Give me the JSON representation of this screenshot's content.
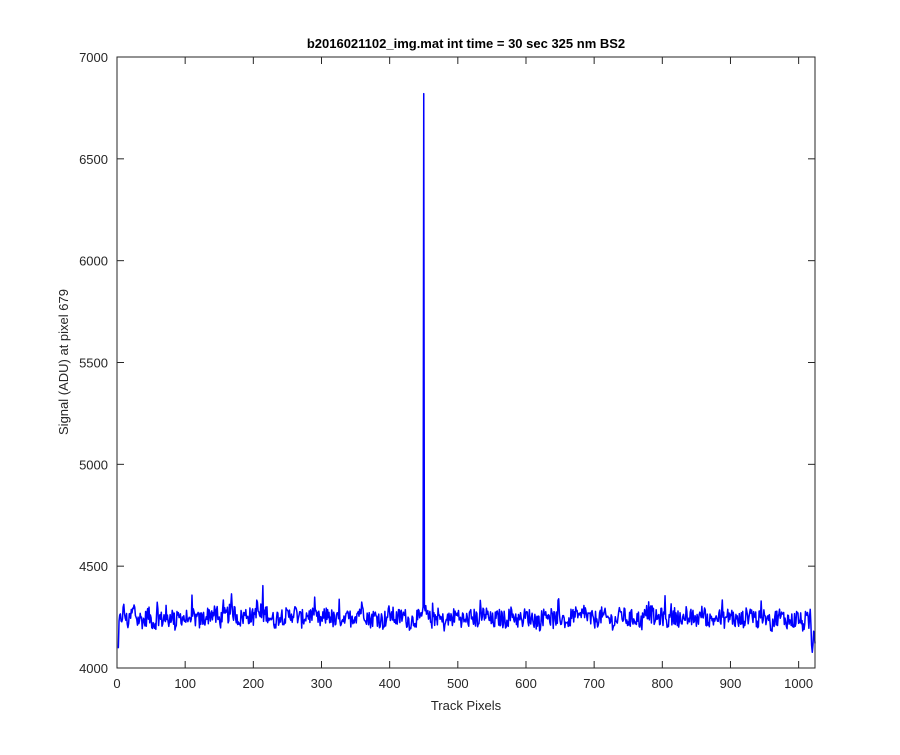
{
  "chart_data": {
    "type": "line",
    "title": "b2016021102_img.mat int time = 30 sec  325 nm BS2",
    "xlabel": "Track Pixels",
    "ylabel": "Signal (ADU) at pixel 679",
    "xlim": [
      0,
      1024
    ],
    "ylim": [
      4000,
      7000
    ],
    "xticks": [
      0,
      100,
      200,
      300,
      400,
      500,
      600,
      700,
      800,
      900,
      1000
    ],
    "yticks": [
      4000,
      4500,
      5000,
      5500,
      6000,
      6500,
      7000
    ],
    "grid": false,
    "series": [
      {
        "color": "#0000ff",
        "description_points": {
          "x": [
            1,
            5,
            10,
            15,
            20,
            25,
            30,
            35,
            40,
            45,
            50,
            55,
            60,
            65,
            70,
            75,
            80,
            85,
            90,
            95,
            100,
            110,
            120,
            130,
            140,
            150,
            160,
            170,
            180,
            190,
            200,
            205,
            210,
            220,
            230,
            240,
            250,
            260,
            270,
            280,
            290,
            300,
            310,
            320,
            330,
            340,
            350,
            360,
            370,
            380,
            390,
            400,
            410,
            420,
            430,
            440,
            445,
            448,
            450,
            452,
            455,
            460,
            470,
            480,
            490,
            500,
            510,
            520,
            530,
            540,
            550,
            560,
            570,
            580,
            590,
            600,
            610,
            620,
            630,
            640,
            650,
            660,
            670,
            680,
            685,
            690,
            700,
            710,
            720,
            730,
            740,
            750,
            760,
            770,
            780,
            790,
            800,
            810,
            820,
            830,
            840,
            850,
            860,
            870,
            880,
            890,
            900,
            910,
            920,
            930,
            940,
            950,
            960,
            970,
            980,
            990,
            1000,
            1005,
            1010,
            1015,
            1018,
            1020,
            1022,
            1024
          ],
          "y": [
            4100,
            4220,
            4350,
            4180,
            4260,
            4380,
            4210,
            4240,
            4190,
            4300,
            4230,
            4170,
            4280,
            4220,
            4250,
            4200,
            4310,
            4180,
            4240,
            4270,
            4230,
            4290,
            4200,
            4260,
            4320,
            4210,
            4280,
            4340,
            4230,
            4300,
            4250,
            4400,
            4270,
            4320,
            4200,
            4290,
            4260,
            4330,
            4220,
            4300,
            4240,
            4210,
            4310,
            4190,
            4260,
            4230,
            4290,
            4380,
            4220,
            4270,
            4200,
            4310,
            4240,
            4280,
            4190,
            4250,
            4220,
            4300,
            6820,
            4330,
            4260,
            4210,
            4270,
            4180,
            4240,
            4290,
            4200,
            4260,
            4230,
            4310,
            4190,
            4250,
            4220,
            4300,
            4210,
            4270,
            4240,
            4190,
            4330,
            4220,
            4260,
            4200,
            4290,
            4230,
            4370,
            4250,
            4210,
            4280,
            4240,
            4190,
            4300,
            4220,
            4260,
            4200,
            4350,
            4230,
            4270,
            4210,
            4290,
            4180,
            4250,
            4230,
            4310,
            4200,
            4260,
            4220,
            4290,
            4190,
            4240,
            4320,
            4210,
            4250,
            4170,
            4280,
            4230,
            4200,
            4260,
            4150,
            4220,
            4190,
            4210,
            4060,
            4180,
            4150
          ]
        }
      }
    ]
  }
}
